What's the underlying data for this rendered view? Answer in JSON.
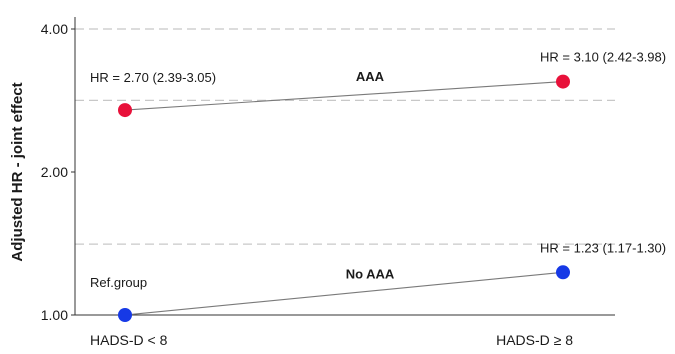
{
  "chart_data": {
    "type": "line",
    "ylabel": "Adjusted HR - joint effect",
    "xlabel": "",
    "y_scale": "log",
    "ylim": [
      1.0,
      4.0
    ],
    "yticks": [
      {
        "value": 1.0,
        "label": "1.00"
      },
      {
        "value": 2.0,
        "label": "2.00"
      },
      {
        "value": 4.0,
        "label": "4.00"
      }
    ],
    "grid_lines_dashed": [
      1.41,
      2.83,
      4.0
    ],
    "categories": [
      "HADS-D < 8",
      "HADS-D ≥ 8"
    ],
    "series": [
      {
        "name": "AAA",
        "color": "#e8113a",
        "values": [
          2.7,
          3.1
        ],
        "point_labels": [
          "HR = 2.70 (2.39-3.05)",
          "HR = 3.10 (2.42-3.98)"
        ]
      },
      {
        "name": "No AAA",
        "color": "#1639e6",
        "values": [
          1.0,
          1.23
        ],
        "point_labels": [
          "Ref.group",
          "HR = 1.23 (1.17-1.30)"
        ]
      }
    ],
    "reference_line": 1.0
  }
}
